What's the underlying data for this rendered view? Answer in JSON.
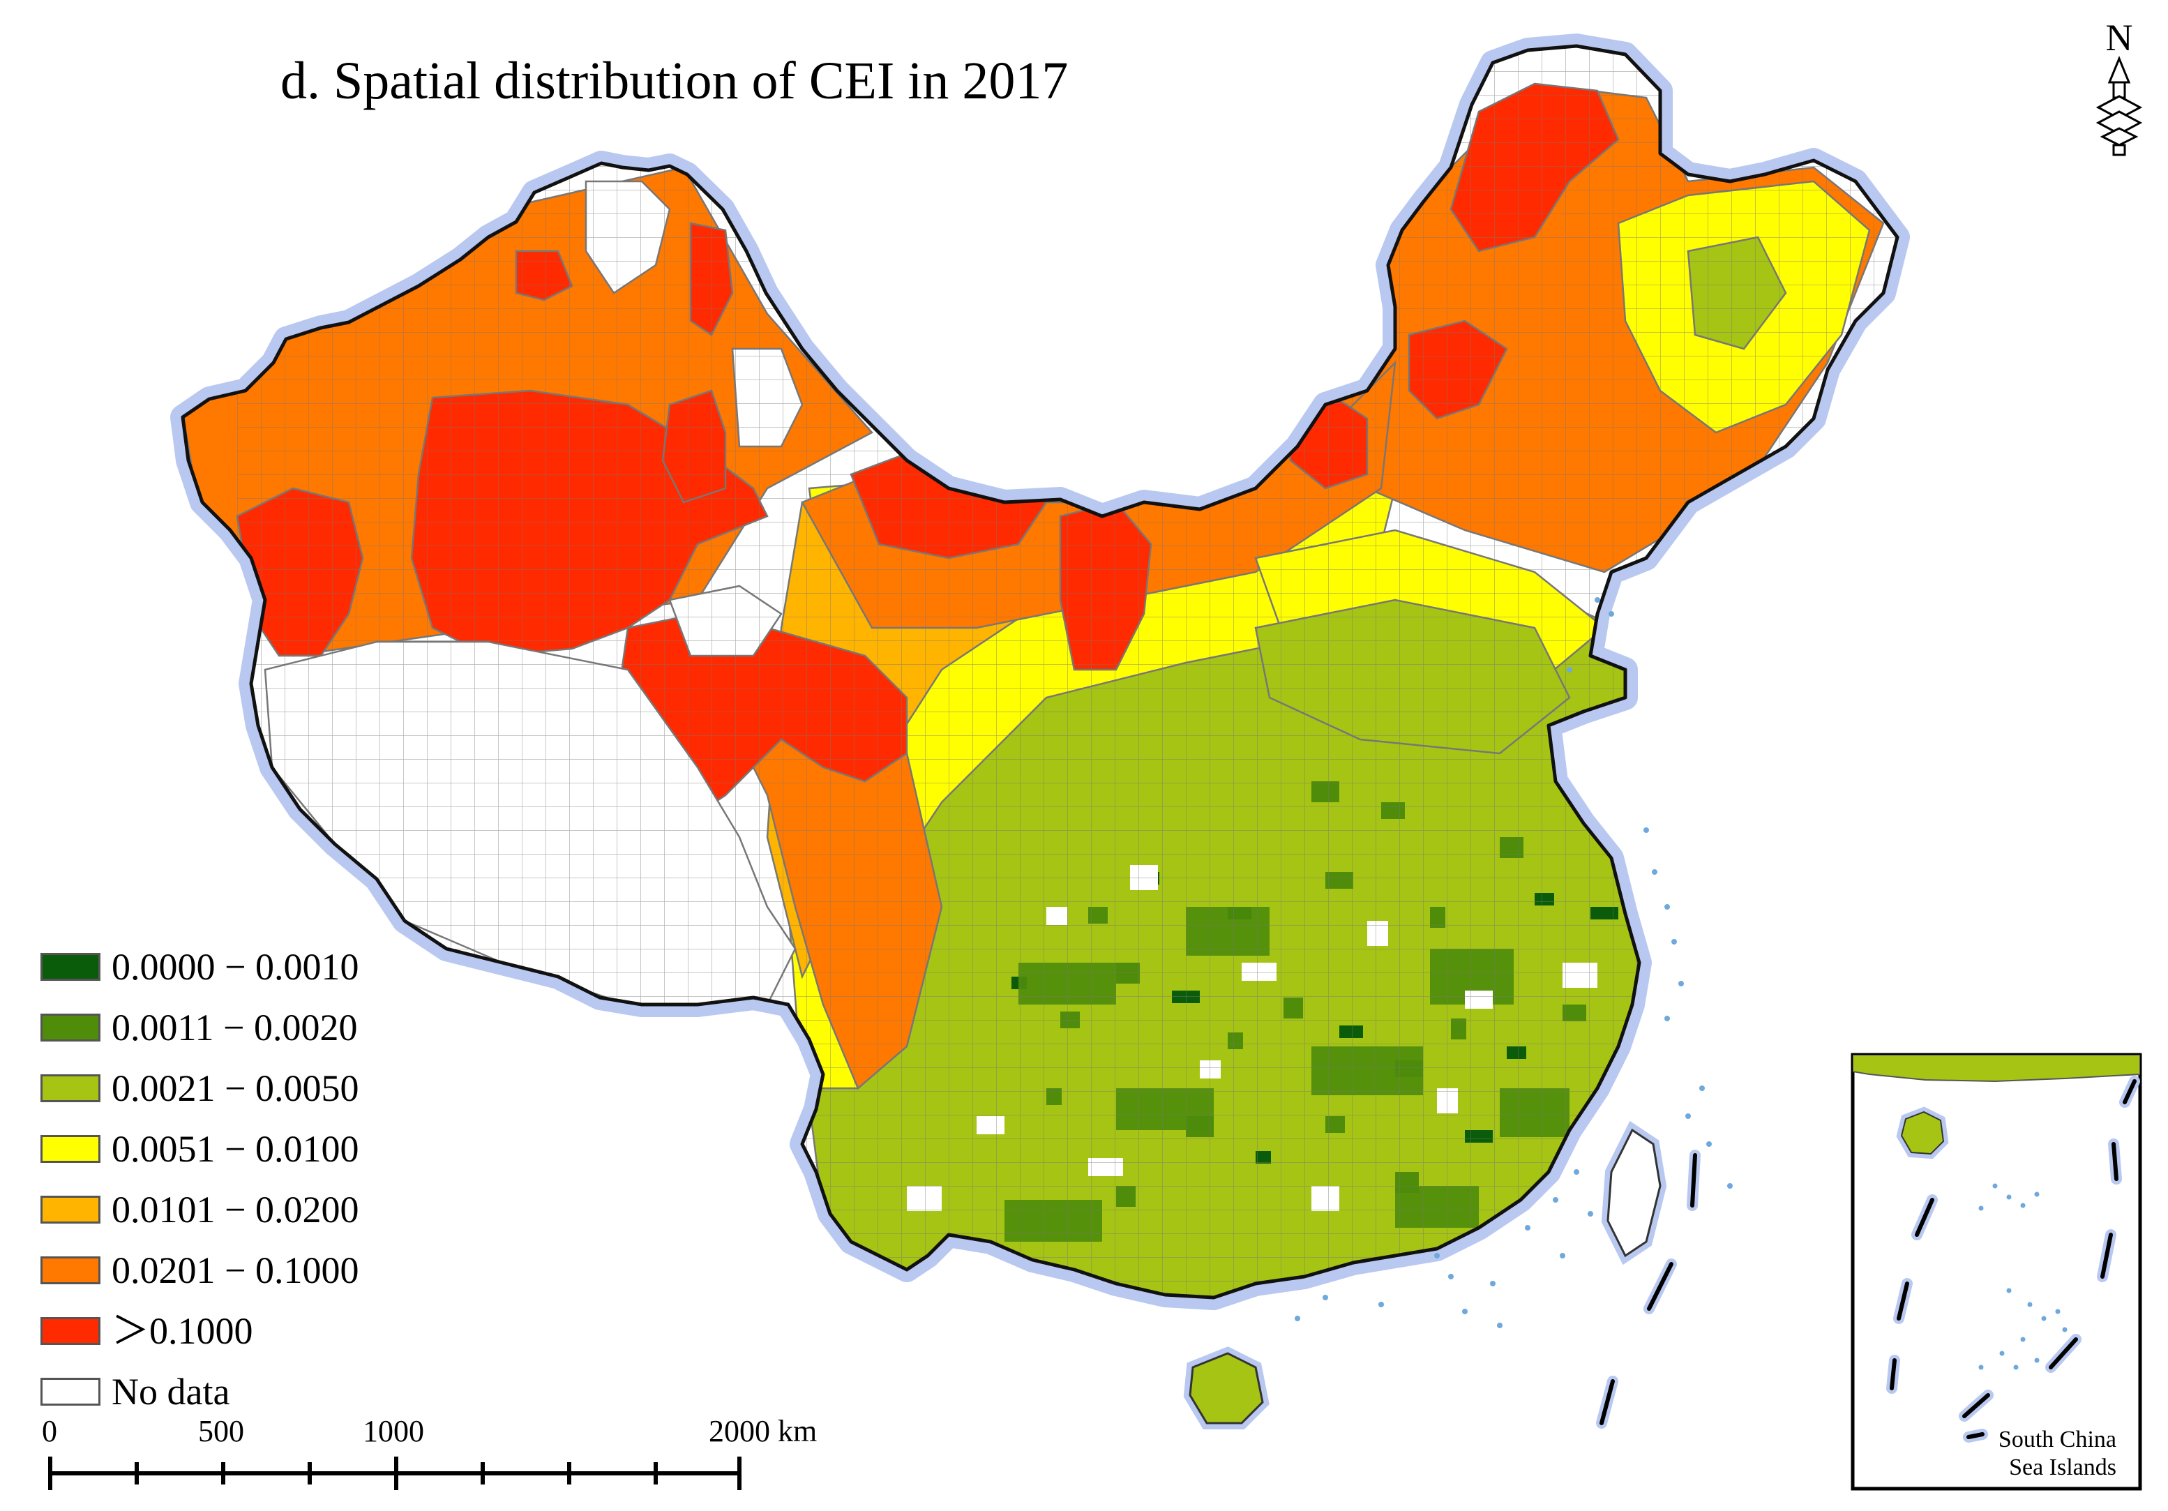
{
  "title": "d. Spatial distribution of CEI in 2017",
  "north_arrow": {
    "label": "N",
    "icon": "north-arrow-icon"
  },
  "legend": {
    "items": [
      {
        "label": "0.0000 − 0.0010",
        "color": "#0a5c0a"
      },
      {
        "label": "0.0011 − 0.0020",
        "color": "#4e8c0a"
      },
      {
        "label": "0.0021 − 0.0050",
        "color": "#a6c414"
      },
      {
        "label": "0.0051 − 0.0100",
        "color": "#ffff00"
      },
      {
        "label": "0.0101 − 0.0200",
        "color": "#ffb400"
      },
      {
        "label": "0.0201 − 0.1000",
        "color": "#ff7800"
      },
      {
        "label": "＞0.1000",
        "color": "#ff2a00"
      },
      {
        "label": "No data",
        "color": "#ffffff"
      }
    ]
  },
  "scale_bar": {
    "labels": [
      "0",
      "500",
      "1000",
      "2000 km"
    ]
  },
  "inset": {
    "caption_line1": "South China",
    "caption_line2": "Sea Islands"
  },
  "colors": {
    "halo": "#b8c8f0",
    "border": "#111111",
    "district_line": "#777777",
    "island": "#6fa8dc"
  }
}
